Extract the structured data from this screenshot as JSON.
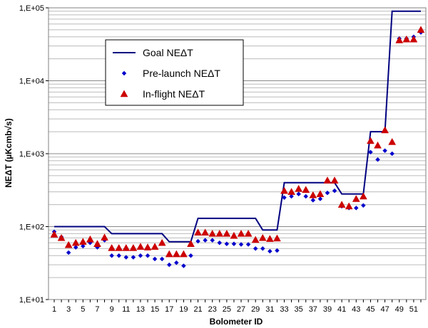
{
  "chart_data": {
    "type": "scatter",
    "title": "",
    "xlabel": "Bolometer ID",
    "ylabel": "NEΔT (µKcmb√s)",
    "y_scale": "log",
    "ylim": [
      10,
      100000
    ],
    "xlim": [
      1,
      52
    ],
    "y_tick_labels": [
      "1,E+01",
      "1,E+02",
      "1,E+03",
      "1,E+04",
      "1,E+05"
    ],
    "y_tick_values": [
      10,
      100,
      1000,
      10000,
      100000
    ],
    "x_tick_labels": [
      "1",
      "3",
      "5",
      "7",
      "9",
      "11",
      "13",
      "15",
      "17",
      "19",
      "21",
      "23",
      "25",
      "27",
      "29",
      "31",
      "33",
      "35",
      "37",
      "39",
      "41",
      "43",
      "45",
      "47",
      "49",
      "51"
    ],
    "grid": "horizontal minor and major",
    "legend_position": "top-left",
    "series": [
      {
        "name": "Goal NEΔT",
        "kind": "line",
        "color": "#000080",
        "x": [
          1,
          8,
          9,
          16,
          17,
          20,
          21,
          29,
          30,
          32,
          33,
          40,
          41,
          44,
          45,
          47,
          48,
          52
        ],
        "values": [
          100,
          100,
          80,
          80,
          62,
          62,
          130,
          130,
          90,
          90,
          400,
          400,
          280,
          280,
          2000,
          2000,
          90000,
          90000
        ]
      },
      {
        "name": "Pre-launch NEΔT",
        "kind": "marker-diamond",
        "color": "#0000cc",
        "x": [
          1,
          2,
          3,
          4,
          5,
          6,
          7,
          8,
          9,
          10,
          11,
          12,
          13,
          14,
          15,
          16,
          17,
          18,
          19,
          20,
          21,
          22,
          23,
          24,
          25,
          26,
          27,
          28,
          29,
          30,
          31,
          32,
          33,
          34,
          35,
          36,
          37,
          38,
          39,
          40,
          41,
          42,
          43,
          44,
          45,
          46,
          47,
          48,
          49,
          50,
          51,
          52
        ],
        "values": [
          85,
          72,
          44,
          52,
          54,
          60,
          52,
          65,
          40,
          40,
          38,
          38,
          40,
          40,
          36,
          36,
          30,
          32,
          29,
          40,
          63,
          65,
          65,
          60,
          58,
          58,
          57,
          57,
          50,
          50,
          46,
          47,
          250,
          260,
          280,
          260,
          230,
          240,
          290,
          310,
          190,
          180,
          180,
          195,
          1050,
          830,
          1100,
          1000,
          38000,
          38000,
          40000,
          46000
        ]
      },
      {
        "name": "In-flight NEΔT",
        "kind": "marker-triangle",
        "color": "#cc0000",
        "x": [
          1,
          2,
          3,
          4,
          5,
          6,
          7,
          8,
          9,
          10,
          11,
          12,
          13,
          14,
          15,
          16,
          17,
          18,
          19,
          20,
          21,
          22,
          23,
          24,
          25,
          26,
          27,
          28,
          29,
          30,
          31,
          32,
          33,
          34,
          35,
          36,
          37,
          38,
          39,
          40,
          41,
          42,
          43,
          44,
          45,
          46,
          47,
          48,
          49,
          50,
          51,
          52
        ],
        "values": [
          78,
          70,
          56,
          60,
          62,
          67,
          58,
          71,
          51,
          51,
          51,
          51,
          53,
          52,
          53,
          60,
          42,
          42,
          42,
          58,
          83,
          83,
          80,
          80,
          80,
          75,
          80,
          80,
          66,
          70,
          68,
          69,
          310,
          300,
          330,
          320,
          270,
          280,
          430,
          430,
          200,
          190,
          240,
          260,
          1500,
          1300,
          2100,
          1450,
          36000,
          37000,
          37000,
          50000
        ]
      }
    ]
  }
}
